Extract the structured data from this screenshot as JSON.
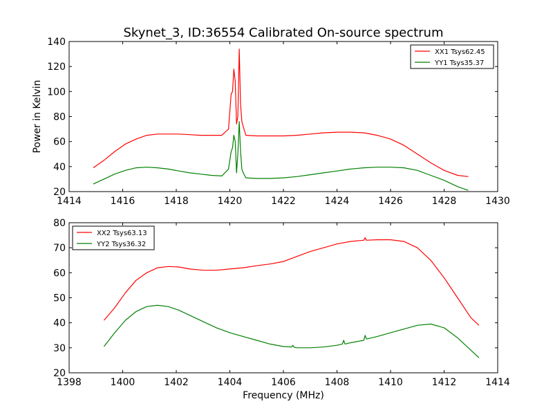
{
  "chart_data": {
    "type": "line",
    "title": "Skynet_3, ID:36554 Calibrated On-source spectrum",
    "shared_xlabel": "Frequency (MHz)",
    "charts": [
      {
        "ylabel": "Power in Kelvin",
        "xlabel": "",
        "xlim": [
          1414,
          1430
        ],
        "ylim": [
          20,
          140
        ],
        "xticks": [
          1414,
          1416,
          1418,
          1420,
          1422,
          1424,
          1426,
          1428,
          1430
        ],
        "yticks": [
          20,
          40,
          60,
          80,
          100,
          120,
          140
        ],
        "grid": false,
        "legend_position": "top-right",
        "series": [
          {
            "name": "XX1 Tsys62.45",
            "color": "#ff0000",
            "x": [
              1414.9,
              1415.3,
              1415.7,
              1416.1,
              1416.5,
              1416.9,
              1417.3,
              1417.7,
              1418.1,
              1418.5,
              1418.9,
              1419.3,
              1419.7,
              1419.95,
              1420.05,
              1420.1,
              1420.15,
              1420.2,
              1420.25,
              1420.3,
              1420.35,
              1420.4,
              1420.45,
              1420.5,
              1420.6,
              1421.0,
              1421.5,
              1422.0,
              1422.5,
              1423.0,
              1423.5,
              1424.0,
              1424.5,
              1425.0,
              1425.5,
              1426.0,
              1426.5,
              1427.0,
              1427.5,
              1428.0,
              1428.5,
              1428.9
            ],
            "values": [
              39,
              45,
              52,
              58,
              62,
              65,
              66,
              66,
              66,
              65.5,
              65,
              65,
              65,
              70,
              98,
              100,
              118,
              108,
              74,
              80,
              134,
              90,
              76,
              72,
              65,
              64.5,
              64.5,
              64.5,
              65,
              66,
              67,
              67.5,
              67.5,
              67,
              65,
              62,
              57,
              50,
              43,
              37,
              33,
              32
            ]
          },
          {
            "name": "YY1 Tsys35.37",
            "color": "#008000",
            "x": [
              1414.9,
              1415.3,
              1415.7,
              1416.1,
              1416.5,
              1416.9,
              1417.3,
              1417.7,
              1418.1,
              1418.5,
              1418.9,
              1419.3,
              1419.7,
              1419.95,
              1420.05,
              1420.1,
              1420.15,
              1420.2,
              1420.25,
              1420.3,
              1420.35,
              1420.4,
              1420.45,
              1420.5,
              1420.6,
              1421.0,
              1421.5,
              1422.0,
              1422.5,
              1423.0,
              1423.5,
              1424.0,
              1424.5,
              1425.0,
              1425.5,
              1426.0,
              1426.5,
              1427.0,
              1427.5,
              1428.0,
              1428.5,
              1428.9
            ],
            "values": [
              26,
              30,
              34,
              37,
              39,
              39.5,
              39,
              38,
              36.5,
              35,
              34,
              33,
              32.5,
              38,
              52,
              55,
              65,
              60,
              35,
              50,
              76,
              52,
              38,
              35,
              31,
              30.5,
              30.5,
              31,
              32,
              33.5,
              35,
              36.5,
              38,
              39,
              39.5,
              39.5,
              39,
              37,
              33,
              29,
              24,
              21
            ]
          }
        ]
      },
      {
        "ylabel": "",
        "xlabel": "Frequency (MHz)",
        "xlim": [
          1398,
          1414
        ],
        "ylim": [
          20,
          80
        ],
        "xticks": [
          1398,
          1400,
          1402,
          1404,
          1406,
          1408,
          1410,
          1412,
          1414
        ],
        "yticks": [
          20,
          30,
          40,
          50,
          60,
          70,
          80
        ],
        "grid": false,
        "legend_position": "top-left",
        "series": [
          {
            "name": "XX2 Tsys63.13",
            "color": "#ff0000",
            "x": [
              1399.3,
              1399.7,
              1400.1,
              1400.5,
              1400.9,
              1401.3,
              1401.7,
              1402.1,
              1402.5,
              1403.0,
              1403.5,
              1404.0,
              1404.5,
              1405.0,
              1405.5,
              1406.0,
              1406.5,
              1407.0,
              1407.5,
              1408.0,
              1408.5,
              1409.0,
              1409.05,
              1409.1,
              1409.5,
              1410.0,
              1410.5,
              1411.0,
              1411.5,
              1412.0,
              1412.5,
              1413.0,
              1413.3
            ],
            "values": [
              41,
              46,
              52,
              57,
              60,
              62,
              62.5,
              62.3,
              61.5,
              61,
              61,
              61.5,
              62,
              62.8,
              63.5,
              64.5,
              66.5,
              68.5,
              70,
              71.5,
              72.5,
              73,
              74,
              73,
              73.2,
              73.2,
              72.5,
              70,
              65,
              58,
              50,
              42,
              39
            ]
          },
          {
            "name": "YY2 Tsys36.32",
            "color": "#008000",
            "x": [
              1399.3,
              1399.7,
              1400.1,
              1400.5,
              1400.9,
              1401.3,
              1401.7,
              1402.1,
              1402.5,
              1403.0,
              1403.5,
              1404.0,
              1404.5,
              1405.0,
              1405.5,
              1406.0,
              1406.3,
              1406.35,
              1406.4,
              1406.5,
              1407.0,
              1407.5,
              1408.0,
              1408.2,
              1408.25,
              1408.3,
              1408.5,
              1409.0,
              1409.05,
              1409.1,
              1409.5,
              1410.0,
              1410.5,
              1411.0,
              1411.5,
              1412.0,
              1412.5,
              1413.0,
              1413.3
            ],
            "values": [
              30.5,
              36,
              41,
              44.5,
              46.5,
              47,
              46.5,
              45,
              43,
              40.5,
              38,
              36,
              34.5,
              33,
              31.5,
              30.5,
              30.3,
              31,
              30.2,
              30,
              30,
              30.3,
              31,
              31.5,
              33,
              31.5,
              32,
              33,
              35,
              33.5,
              34.5,
              36,
              37.5,
              39,
              39.5,
              38,
              34,
              29,
              26
            ]
          }
        ]
      }
    ]
  }
}
